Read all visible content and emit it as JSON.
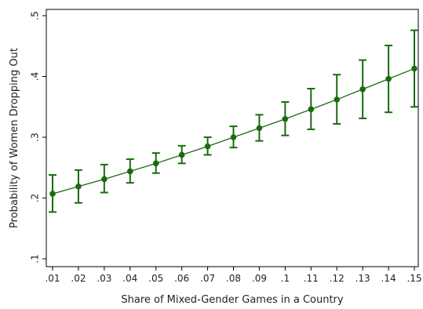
{
  "chart_data": {
    "type": "line",
    "title": "",
    "xlabel": "Share of Mixed-Gender Games in a Country",
    "ylabel": "Probability of Women Dropping Out",
    "x": [
      0.01,
      0.02,
      0.03,
      0.04,
      0.05,
      0.06,
      0.07,
      0.08,
      0.09,
      0.1,
      0.11,
      0.12,
      0.13,
      0.14,
      0.15
    ],
    "x_tick_labels": [
      ".01",
      ".02",
      ".03",
      ".04",
      ".05",
      ".06",
      ".07",
      ".08",
      ".09",
      ".1",
      ".11",
      ".12",
      ".13",
      ".14",
      ".15"
    ],
    "y_ticks": [
      0.1,
      0.2,
      0.3,
      0.4,
      0.5
    ],
    "y_tick_labels": [
      ".1",
      ".2",
      ".3",
      ".4",
      ".5"
    ],
    "ylim": [
      0.1,
      0.5
    ],
    "series": [
      {
        "values": [
          0.207,
          0.219,
          0.231,
          0.244,
          0.257,
          0.271,
          0.285,
          0.3,
          0.315,
          0.33,
          0.346,
          0.362,
          0.379,
          0.396,
          0.413
        ],
        "ci_low": [
          0.177,
          0.192,
          0.209,
          0.225,
          0.241,
          0.257,
          0.271,
          0.283,
          0.294,
          0.303,
          0.313,
          0.322,
          0.331,
          0.341,
          0.35
        ],
        "ci_high": [
          0.238,
          0.246,
          0.255,
          0.264,
          0.274,
          0.286,
          0.3,
          0.318,
          0.337,
          0.358,
          0.38,
          0.403,
          0.427,
          0.451,
          0.476
        ],
        "color": "#1a6b0f"
      }
    ],
    "grid": false,
    "legend": "none"
  }
}
